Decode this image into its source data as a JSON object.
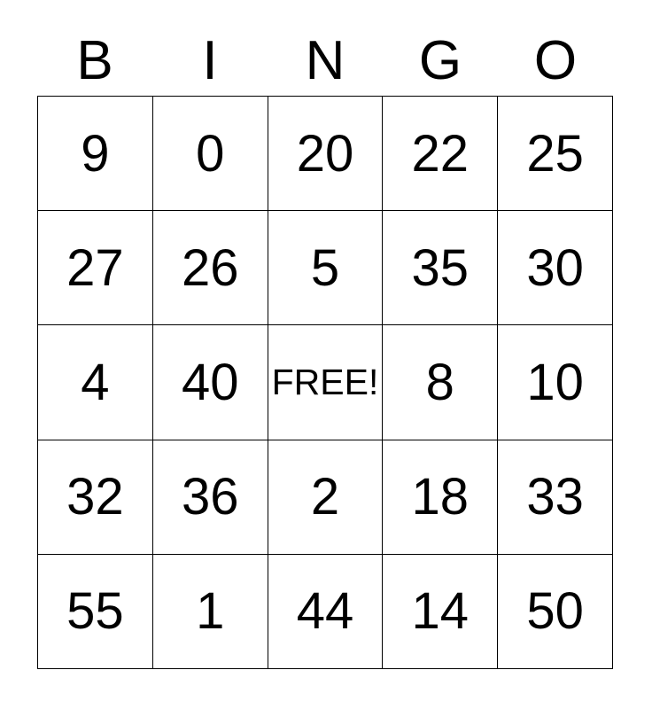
{
  "card": {
    "title": "BINGO",
    "header_letters": [
      "B",
      "I",
      "N",
      "G",
      "O"
    ],
    "free_label": "FREE!",
    "free_cell": {
      "row": 2,
      "col": 2
    },
    "rows": [
      [
        "9",
        "0",
        "20",
        "22",
        "25"
      ],
      [
        "27",
        "26",
        "5",
        "35",
        "30"
      ],
      [
        "4",
        "40",
        "FREE!",
        "8",
        "10"
      ],
      [
        "32",
        "36",
        "2",
        "18",
        "33"
      ],
      [
        "55",
        "1",
        "44",
        "14",
        "50"
      ]
    ],
    "colors": {
      "text": "#000000",
      "grid_line": "#000000",
      "background": "#ffffff"
    }
  }
}
